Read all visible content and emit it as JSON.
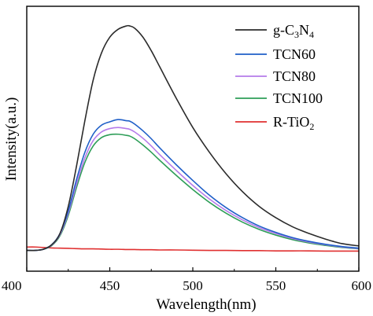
{
  "chart_data": {
    "type": "line",
    "xlabel": "Wavelength(nm)",
    "ylabel": "Intensity(a.u.)",
    "xlim": [
      400,
      600
    ],
    "ylim": [
      0,
      1
    ],
    "x_ticks": [
      400,
      450,
      500,
      550,
      600
    ],
    "y_ticks_shown": false,
    "grid": false,
    "legend": {
      "placement": "top-right",
      "entries": [
        {
          "label": "g-C",
          "sub1": "3",
          "mid": "N",
          "sub2": "4",
          "color": "#2b2b2b"
        },
        {
          "label": "TCN60",
          "color": "#1f5fc8"
        },
        {
          "label": "TCN80",
          "color": "#b57bea"
        },
        {
          "label": "TCN100",
          "color": "#2e9e58"
        },
        {
          "label": "R-TiO",
          "sub1": "2",
          "color": "#e03030"
        }
      ]
    },
    "x": [
      400,
      405,
      410,
      415,
      420,
      425,
      430,
      435,
      440,
      445,
      450,
      455,
      460,
      462,
      465,
      470,
      475,
      480,
      490,
      500,
      510,
      520,
      530,
      540,
      550,
      560,
      570,
      580,
      590,
      600
    ],
    "series": [
      {
        "name": "g-C3N4",
        "color": "#2b2b2b",
        "values": [
          0.005,
          0.005,
          0.01,
          0.03,
          0.08,
          0.2,
          0.38,
          0.58,
          0.76,
          0.88,
          0.95,
          0.985,
          1.0,
          1.0,
          0.99,
          0.95,
          0.89,
          0.82,
          0.68,
          0.55,
          0.44,
          0.345,
          0.265,
          0.2,
          0.15,
          0.11,
          0.08,
          0.055,
          0.035,
          0.025
        ]
      },
      {
        "name": "TCN60",
        "color": "#1f5fc8",
        "values": [
          0.005,
          0.005,
          0.01,
          0.03,
          0.08,
          0.18,
          0.32,
          0.44,
          0.52,
          0.56,
          0.575,
          0.585,
          0.58,
          0.578,
          0.565,
          0.535,
          0.5,
          0.46,
          0.385,
          0.315,
          0.25,
          0.195,
          0.15,
          0.113,
          0.085,
          0.062,
          0.045,
          0.032,
          0.022,
          0.015
        ]
      },
      {
        "name": "TCN80",
        "color": "#b57bea",
        "values": [
          0.005,
          0.005,
          0.01,
          0.028,
          0.075,
          0.17,
          0.3,
          0.415,
          0.492,
          0.53,
          0.545,
          0.55,
          0.545,
          0.542,
          0.53,
          0.502,
          0.468,
          0.43,
          0.36,
          0.293,
          0.233,
          0.182,
          0.14,
          0.106,
          0.08,
          0.058,
          0.042,
          0.03,
          0.02,
          0.013
        ]
      },
      {
        "name": "TCN100",
        "color": "#2e9e58",
        "values": [
          0.005,
          0.005,
          0.01,
          0.026,
          0.07,
          0.16,
          0.285,
          0.395,
          0.468,
          0.505,
          0.518,
          0.52,
          0.515,
          0.512,
          0.5,
          0.472,
          0.44,
          0.405,
          0.338,
          0.275,
          0.218,
          0.17,
          0.13,
          0.098,
          0.073,
          0.053,
          0.038,
          0.027,
          0.018,
          0.012
        ]
      },
      {
        "name": "R-TiO2",
        "color": "#e03030",
        "values": [
          0.02,
          0.02,
          0.018,
          0.016,
          0.015,
          0.014,
          0.013,
          0.012,
          0.012,
          0.011,
          0.01,
          0.01,
          0.009,
          0.009,
          0.009,
          0.008,
          0.008,
          0.007,
          0.007,
          0.006,
          0.005,
          0.005,
          0.004,
          0.004,
          0.003,
          0.003,
          0.003,
          0.002,
          0.002,
          0.002
        ]
      }
    ]
  }
}
